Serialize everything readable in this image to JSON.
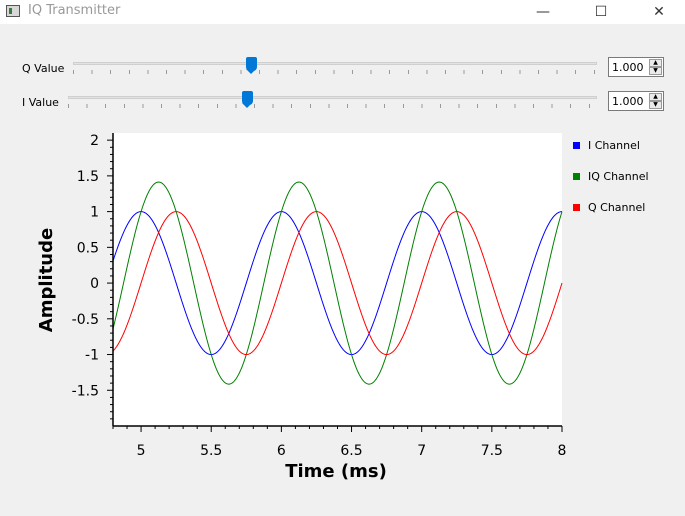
{
  "window": {
    "title": "IQ Transmitter",
    "minimize_glyph": "—",
    "maximize_glyph": "☐",
    "close_glyph": "✕"
  },
  "controls": {
    "q": {
      "label": "Q Value",
      "value": "1.000",
      "slider_fraction": 0.34
    },
    "i": {
      "label": "I Value",
      "value": "1.000",
      "slider_fraction": 0.34
    }
  },
  "chart_data": {
    "type": "line",
    "xlabel": "Time (ms)",
    "ylabel": "Amplitude",
    "xlim": [
      4.8,
      8.0
    ],
    "ylim": [
      -2.0,
      2.1
    ],
    "xticks": [
      "5",
      "5.5",
      "6",
      "6.5",
      "7",
      "7.5",
      "8"
    ],
    "xtick_values": [
      5,
      5.5,
      6,
      6.5,
      7,
      7.5,
      8
    ],
    "yticks": [
      "2",
      "1.5",
      "1",
      "0.5",
      "0",
      "-0.5",
      "-1",
      "-1.5"
    ],
    "ytick_values": [
      2,
      1.5,
      1,
      0.5,
      0,
      -0.5,
      -1,
      -1.5
    ],
    "grid": false,
    "legend_position": "right",
    "frequency_khz": 1,
    "series": [
      {
        "name": "I Channel",
        "color": "#0000ff",
        "amplitude": 1.0,
        "peak_x": 5.0
      },
      {
        "name": "IQ Channel",
        "color": "#008000",
        "amplitude": 1.414,
        "peak_x": 5.125
      },
      {
        "name": "Q Channel",
        "color": "#ff0000",
        "amplitude": 1.0,
        "peak_x": 5.25
      }
    ]
  }
}
